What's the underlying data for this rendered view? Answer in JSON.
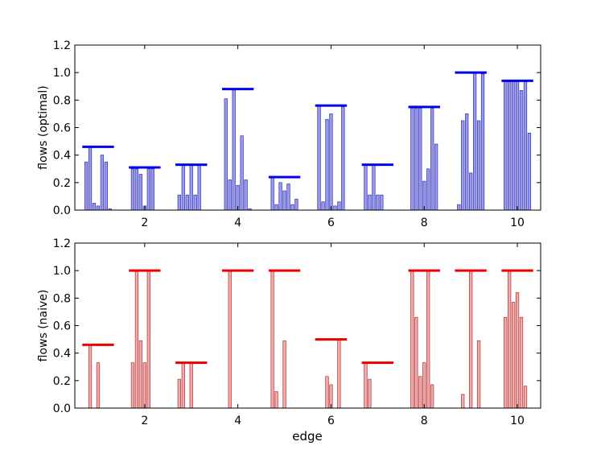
{
  "chart_data": [
    {
      "type": "bar",
      "title": "",
      "xlabel": "",
      "ylabel": "flows (optimal)",
      "xlim": [
        0.5,
        10.5
      ],
      "ylim": [
        0,
        1.2
      ],
      "x_ticks": [
        2,
        4,
        6,
        8,
        10
      ],
      "x_tick_labels": [
        "2",
        "4",
        "6",
        "8",
        "10"
      ],
      "y_ticks": [
        0,
        0.2,
        0.4,
        0.6,
        0.8,
        1.0,
        1.2
      ],
      "y_tick_labels": [
        "0.0",
        "0.2",
        "0.4",
        "0.6",
        "0.8",
        "1.0",
        "1.2"
      ],
      "bar_color": "#9999ee",
      "bar_edge_color": "#3333aa",
      "line_color": "#0000ee",
      "groups": [
        {
          "edge": 1,
          "capacity": 0.46,
          "values": [
            0.35,
            0.46,
            0.05,
            0.03,
            0.4,
            0.35,
            0.01
          ]
        },
        {
          "edge": 2,
          "capacity": 0.31,
          "values": [
            0.3,
            0.3,
            0.26,
            0.03,
            0.3,
            0.3
          ]
        },
        {
          "edge": 3,
          "capacity": 0.33,
          "values": [
            0.11,
            0.33,
            0.11,
            0.33,
            0.11,
            0.33
          ]
        },
        {
          "edge": 4,
          "capacity": 0.88,
          "values": [
            0.81,
            0.22,
            0.88,
            0.18,
            0.54,
            0.22,
            0.01
          ]
        },
        {
          "edge": 5,
          "capacity": 0.24,
          "values": [
            0.24,
            0.04,
            0.2,
            0.14,
            0.19,
            0.04,
            0.08
          ]
        },
        {
          "edge": 6,
          "capacity": 0.76,
          "values": [
            0.76,
            0.06,
            0.66,
            0.7,
            0.03,
            0.06,
            0.75
          ]
        },
        {
          "edge": 7,
          "capacity": 0.33,
          "values": [
            0.33,
            0.11,
            0.33,
            0.11,
            0.11
          ]
        },
        {
          "edge": 8,
          "capacity": 0.75,
          "values": [
            0.74,
            0.74,
            0.74,
            0.21,
            0.3,
            0.74,
            0.48
          ]
        },
        {
          "edge": 9,
          "capacity": 1.0,
          "values": [
            0.04,
            0.65,
            0.7,
            0.27,
            1.0,
            0.65,
            0.99
          ]
        },
        {
          "edge": 10,
          "capacity": 0.94,
          "values": [
            0.94,
            0.94,
            0.94,
            0.94,
            0.87,
            0.94,
            0.56
          ]
        }
      ]
    },
    {
      "type": "bar",
      "title": "",
      "xlabel": "edge",
      "ylabel": "flows (naive)",
      "xlim": [
        0.5,
        10.5
      ],
      "ylim": [
        0,
        1.2
      ],
      "x_ticks": [
        2,
        4,
        6,
        8,
        10
      ],
      "x_tick_labels": [
        "2",
        "4",
        "6",
        "8",
        "10"
      ],
      "y_ticks": [
        0,
        0.2,
        0.4,
        0.6,
        0.8,
        1.0,
        1.2
      ],
      "y_tick_labels": [
        "0.0",
        "0.2",
        "0.4",
        "0.6",
        "0.8",
        "1.0",
        "1.2"
      ],
      "bar_color": "#f4aaaa",
      "bar_edge_color": "#aa3333",
      "line_color": "#ee0000",
      "groups": [
        {
          "edge": 1,
          "capacity": 0.46,
          "values": [
            0,
            0.46,
            0,
            0.33,
            0,
            0,
            0
          ]
        },
        {
          "edge": 2,
          "capacity": 1.0,
          "values": [
            0.33,
            1.0,
            0.49,
            0.33,
            1.0,
            0,
            0
          ]
        },
        {
          "edge": 3,
          "capacity": 0.33,
          "values": [
            0.21,
            0.33,
            0,
            0.33,
            0,
            0,
            0
          ]
        },
        {
          "edge": 4,
          "capacity": 1.0,
          "values": [
            0,
            1.0,
            0,
            0,
            0,
            0,
            0
          ]
        },
        {
          "edge": 5,
          "capacity": 1.0,
          "values": [
            1.0,
            0.12,
            0,
            0.49,
            0,
            0,
            0
          ]
        },
        {
          "edge": 6,
          "capacity": 0.5,
          "values": [
            0,
            0,
            0.23,
            0.17,
            0,
            0.5,
            0
          ]
        },
        {
          "edge": 7,
          "capacity": 0.33,
          "values": [
            0.33,
            0.21,
            0,
            0,
            0,
            0,
            0
          ]
        },
        {
          "edge": 8,
          "capacity": 1.0,
          "values": [
            1.0,
            0.66,
            0.23,
            0.33,
            1.0,
            0.17,
            0
          ]
        },
        {
          "edge": 9,
          "capacity": 1.0,
          "values": [
            0,
            0.1,
            0,
            1.0,
            0,
            0.49,
            0
          ]
        },
        {
          "edge": 10,
          "capacity": 1.0,
          "values": [
            0.66,
            1.0,
            0.77,
            0.84,
            0.66,
            0.16,
            0
          ]
        }
      ]
    }
  ]
}
